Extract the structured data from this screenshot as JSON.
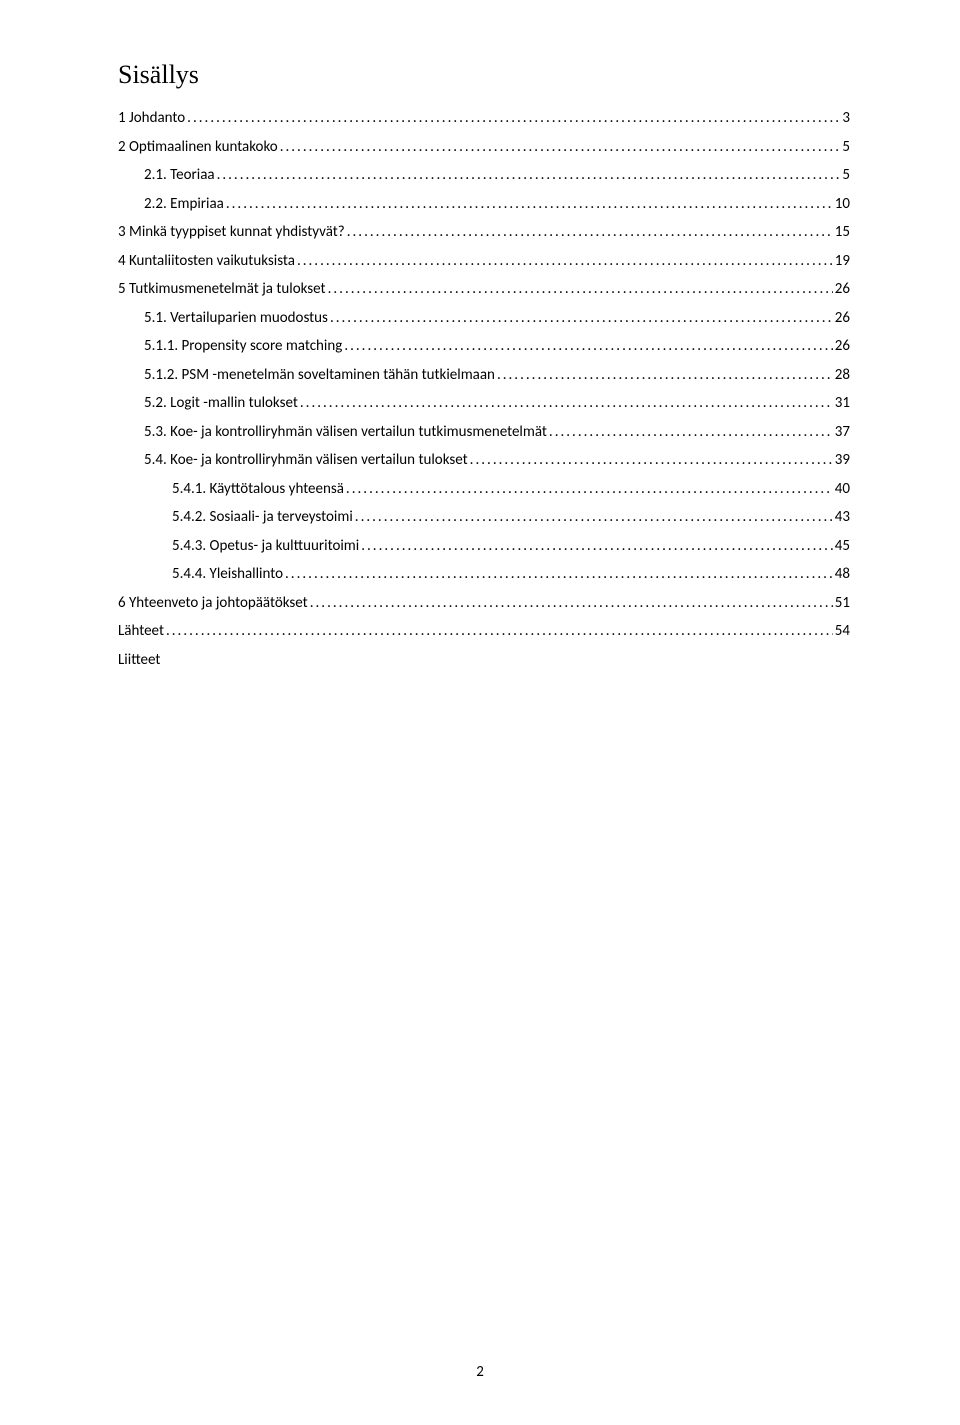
{
  "title": "Sisällys",
  "page_number": "2",
  "toc": [
    {
      "label": "1 Johdanto",
      "page": "3",
      "level": 0
    },
    {
      "label": "2 Optimaalinen kuntakoko",
      "page": "5",
      "level": 0
    },
    {
      "label": "2.1. Teoriaa",
      "page": "5",
      "level": 1
    },
    {
      "label": "2.2. Empiriaa",
      "page": "10",
      "level": 1
    },
    {
      "label": "3 Minkä tyyppiset kunnat yhdistyvät?",
      "page": "15",
      "level": 0
    },
    {
      "label": "4 Kuntaliitosten vaikutuksista",
      "page": "19",
      "level": 0
    },
    {
      "label": "5 Tutkimusmenetelmät ja tulokset",
      "page": "26",
      "level": 0
    },
    {
      "label": "5.1. Vertailuparien muodostus",
      "page": "26",
      "level": 1
    },
    {
      "label": "5.1.1. Propensity score matching",
      "page": "26",
      "level": 1
    },
    {
      "label": "5.1.2. PSM -menetelmän soveltaminen tähän tutkielmaan",
      "page": "28",
      "level": 1
    },
    {
      "label": "5.2. Logit -mallin tulokset",
      "page": "31",
      "level": 1
    },
    {
      "label": "5.3. Koe- ja kontrolliryhmän välisen vertailun tutkimusmenetelmät",
      "page": "37",
      "level": 1
    },
    {
      "label": "5.4. Koe- ja kontrolliryhmän välisen vertailun tulokset",
      "page": "39",
      "level": 1
    },
    {
      "label": "5.4.1. Käyttötalous yhteensä",
      "page": "40",
      "level": 2
    },
    {
      "label": "5.4.2. Sosiaali- ja terveystoimi",
      "page": "43",
      "level": 2
    },
    {
      "label": "5.4.3. Opetus- ja kulttuuritoimi",
      "page": "45",
      "level": 2
    },
    {
      "label": "5.4.4. Yleishallinto",
      "page": "48",
      "level": 2
    },
    {
      "label": "6 Yhteenveto ja johtopäätökset",
      "page": "51",
      "level": 0
    },
    {
      "label": "Lähteet",
      "page": "54",
      "level": 0
    },
    {
      "label": "Liitteet",
      "page": "",
      "level": 0
    }
  ]
}
